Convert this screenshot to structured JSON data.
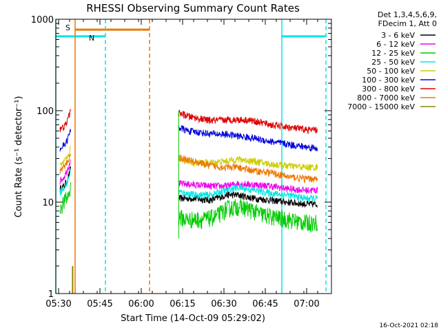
{
  "chart_data": {
    "type": "line",
    "title": "RHESSI Observing Summary Count Rates",
    "xlabel": "Start Time (14-Oct-09 05:29:02)",
    "ylabel": "Count Rate (s⁻¹ detector⁻¹)",
    "yscale": "log",
    "ylim": [
      1,
      1000
    ],
    "xlim_minutes_after_0529": [
      0,
      100
    ],
    "x_ticks": [
      {
        "label": "05:30",
        "min": 1
      },
      {
        "label": "05:45",
        "min": 16
      },
      {
        "label": "06:00",
        "min": 31
      },
      {
        "label": "06:15",
        "min": 46
      },
      {
        "label": "06:30",
        "min": 61
      },
      {
        "label": "06:45",
        "min": 76
      },
      {
        "label": "07:00",
        "min": 91
      }
    ],
    "y_ticks": [
      {
        "label": "1",
        "value": 1
      },
      {
        "label": "10",
        "value": 10
      },
      {
        "label": "100",
        "value": 100
      },
      {
        "label": "1000",
        "value": 1000
      }
    ],
    "legend_header": [
      "Det 1,3,4,5,6,9,",
      "FDecim 1, Att 0"
    ],
    "legend_position": "right",
    "series": [
      {
        "name": "3 - 6 keV",
        "color": "#000000",
        "seg1": [
          [
            1.5,
            14
          ],
          [
            3,
            15
          ],
          [
            4,
            17
          ],
          [
            5,
            21
          ],
          [
            5.5,
            25
          ]
        ],
        "seg2": [
          [
            44.5,
            11
          ],
          [
            50,
            11
          ],
          [
            56,
            10.5
          ],
          [
            62,
            12
          ],
          [
            66,
            12
          ],
          [
            72,
            11
          ],
          [
            78,
            10.5
          ],
          [
            84,
            10
          ],
          [
            91,
            9.5
          ],
          [
            95,
            9.5
          ]
        ]
      },
      {
        "name": "6 - 12 keV",
        "color": "#ee00ee",
        "seg1": [
          [
            1.5,
            17
          ],
          [
            3,
            19
          ],
          [
            4,
            22
          ],
          [
            5,
            27
          ],
          [
            5.5,
            32
          ]
        ],
        "seg2": [
          [
            44.5,
            16
          ],
          [
            50,
            15.5
          ],
          [
            56,
            15
          ],
          [
            62,
            15
          ],
          [
            66,
            16
          ],
          [
            72,
            15.5
          ],
          [
            78,
            15
          ],
          [
            84,
            14
          ],
          [
            91,
            13.5
          ],
          [
            95,
            13.5
          ]
        ]
      },
      {
        "name": "12 - 25 keV",
        "color": "#00cc00",
        "seg1": [
          [
            1.5,
            9
          ],
          [
            3,
            10
          ],
          [
            4,
            11
          ],
          [
            5,
            13
          ],
          [
            5.5,
            15
          ]
        ],
        "seg2": [
          [
            44.5,
            7
          ],
          [
            47,
            6.5
          ],
          [
            50,
            6.5
          ],
          [
            54,
            6.5
          ],
          [
            58,
            7
          ],
          [
            62,
            8.5
          ],
          [
            66,
            9
          ],
          [
            70,
            8.5
          ],
          [
            74,
            7.5
          ],
          [
            78,
            7
          ],
          [
            84,
            6.5
          ],
          [
            90,
            6
          ],
          [
            95,
            6
          ]
        ]
      },
      {
        "name": "25 - 50 keV",
        "color": "#00e5e5",
        "seg1": [
          [
            1.5,
            13
          ],
          [
            3,
            14
          ],
          [
            4,
            16
          ],
          [
            5,
            20
          ],
          [
            5.5,
            23
          ]
        ],
        "seg2": [
          [
            44.5,
            13
          ],
          [
            50,
            12
          ],
          [
            56,
            12
          ],
          [
            62,
            13.5
          ],
          [
            66,
            14.5
          ],
          [
            72,
            13.5
          ],
          [
            78,
            12.5
          ],
          [
            84,
            12
          ],
          [
            91,
            11
          ],
          [
            95,
            11
          ]
        ]
      },
      {
        "name": "50 - 100 keV",
        "color": "#cccc00",
        "seg1": [
          [
            1.5,
            25
          ],
          [
            3,
            27
          ],
          [
            4,
            30
          ],
          [
            5,
            36
          ],
          [
            5.5,
            40
          ]
        ],
        "seg2": [
          [
            44.5,
            30
          ],
          [
            50,
            27
          ],
          [
            56,
            27
          ],
          [
            62,
            28
          ],
          [
            66,
            29.5
          ],
          [
            72,
            28
          ],
          [
            78,
            26
          ],
          [
            84,
            25
          ],
          [
            91,
            24
          ],
          [
            95,
            24
          ]
        ]
      },
      {
        "name": "100 - 300 keV",
        "color": "#0000dd",
        "seg1": [
          [
            1.5,
            39
          ],
          [
            3,
            42
          ],
          [
            4,
            47
          ],
          [
            5,
            56
          ],
          [
            5.5,
            62
          ]
        ],
        "seg2": [
          [
            44.5,
            66
          ],
          [
            48,
            60
          ],
          [
            52,
            58
          ],
          [
            56,
            56
          ],
          [
            62,
            55
          ],
          [
            66,
            53
          ],
          [
            72,
            50
          ],
          [
            78,
            46
          ],
          [
            84,
            43
          ],
          [
            91,
            40
          ],
          [
            95,
            39
          ]
        ]
      },
      {
        "name": "300 - 800 keV",
        "color": "#dd0000",
        "seg1": [
          [
            1.5,
            62
          ],
          [
            3,
            66
          ],
          [
            4,
            75
          ],
          [
            5,
            92
          ],
          [
            5.5,
            108
          ]
        ],
        "seg2": [
          [
            44.5,
            95
          ],
          [
            48,
            87
          ],
          [
            52,
            82
          ],
          [
            56,
            78
          ],
          [
            62,
            79
          ],
          [
            66,
            80
          ],
          [
            70,
            79
          ],
          [
            74,
            75
          ],
          [
            78,
            70
          ],
          [
            84,
            66
          ],
          [
            91,
            62
          ],
          [
            95,
            61
          ]
        ]
      },
      {
        "name": "800 - 7000 keV",
        "color": "#ee7700",
        "seg1": [
          [
            1.5,
            22
          ],
          [
            3,
            24
          ],
          [
            4,
            27
          ],
          [
            5,
            31
          ],
          [
            5.5,
            35
          ]
        ],
        "seg2": [
          [
            44.5,
            31
          ],
          [
            48,
            29
          ],
          [
            52,
            27
          ],
          [
            56,
            25
          ],
          [
            62,
            24
          ],
          [
            66,
            24
          ],
          [
            72,
            22
          ],
          [
            78,
            21
          ],
          [
            84,
            19
          ],
          [
            91,
            18
          ],
          [
            95,
            18
          ]
        ]
      },
      {
        "name": "7000 - 15000 keV",
        "color": "#888800",
        "seg1": [
          [
            6,
            1
          ],
          [
            6.01,
            2
          ],
          [
            6.3,
            2
          ],
          [
            6.31,
            1
          ]
        ],
        "seg2": []
      }
    ],
    "vertical_lines": [
      {
        "color": "#00e5e5",
        "style": "solid",
        "min": 0
      },
      {
        "color": "#ee7700",
        "style": "solid",
        "min": 7
      },
      {
        "color": "#00e5e5",
        "style": "dashed",
        "min": 18
      },
      {
        "color": "#ee7700",
        "style": "dashed",
        "min": 34
      },
      {
        "color": "#00e5e5",
        "style": "solid",
        "min": 82
      },
      {
        "color": "#00e5e5",
        "style": "dashed",
        "min": 98
      }
    ],
    "flag_bars": [
      {
        "label": "S",
        "color": "#ee7700",
        "start_min": 7,
        "end_min": 34,
        "value": 770
      },
      {
        "label": "N",
        "color": "#00e5e5",
        "start_min": 0,
        "end_min": 18,
        "value": 650
      },
      {
        "label": "",
        "color": "#00e5e5",
        "start_min": 82,
        "end_min": 98,
        "value": 650
      }
    ]
  },
  "footer": {
    "timestamp": "16-Oct-2021 02:18"
  }
}
